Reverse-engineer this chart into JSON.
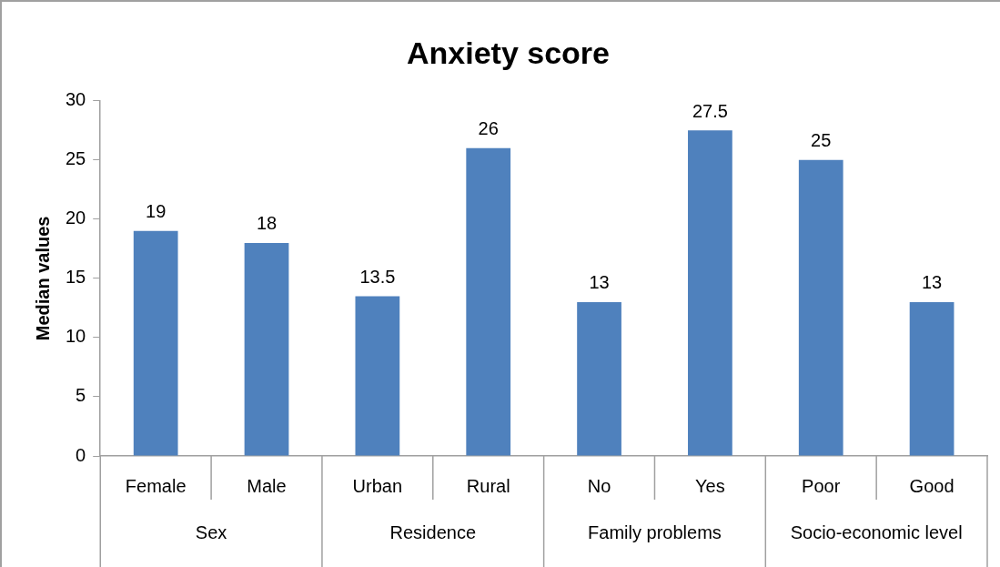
{
  "chart_data": {
    "type": "bar",
    "title": "Anxiety score",
    "ylabel": "Median values",
    "categories": [
      "Female",
      "Male",
      "Urban",
      "Rural",
      "No",
      "Yes",
      "Poor",
      "Good"
    ],
    "values": [
      19,
      18,
      13.5,
      26,
      13,
      27.5,
      25,
      13
    ],
    "color": "#4f81bd",
    "ylim": [
      0,
      30
    ],
    "yticks": [
      0,
      5,
      10,
      15,
      20,
      25,
      30
    ],
    "grid": false,
    "legend": false,
    "data_labels": true,
    "annotations": [
      "Sex",
      "Residence",
      "Family problems",
      "Socio-economic level"
    ]
  }
}
